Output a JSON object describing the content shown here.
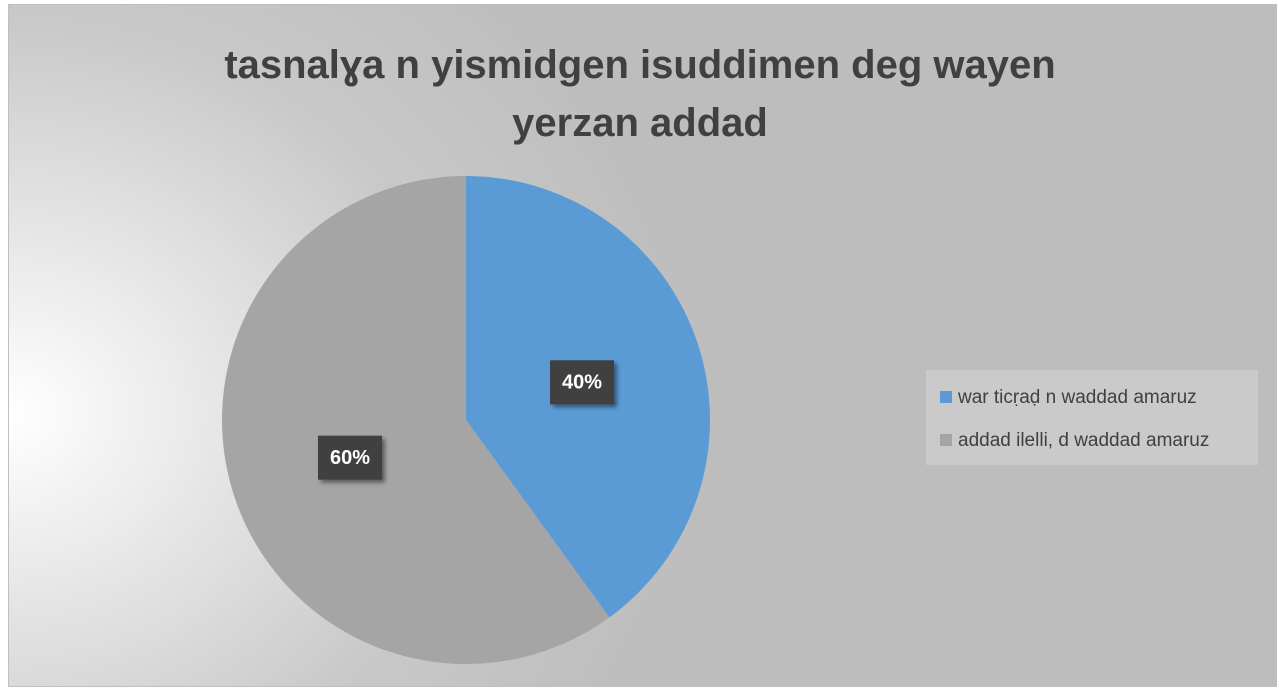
{
  "chart_data": {
    "type": "pie",
    "title": "tasnalɣa n yismidgen isuddimen deg wayen yerzan addad",
    "categories": [
      "war ticṛaḍ n waddad amaruz",
      "addad ilelli, d waddad amaruz"
    ],
    "values": [
      40,
      60
    ],
    "value_labels": [
      "40%",
      "60%"
    ],
    "colors": [
      "#5b9bd5",
      "#a5a5a5"
    ],
    "legend": "right"
  }
}
